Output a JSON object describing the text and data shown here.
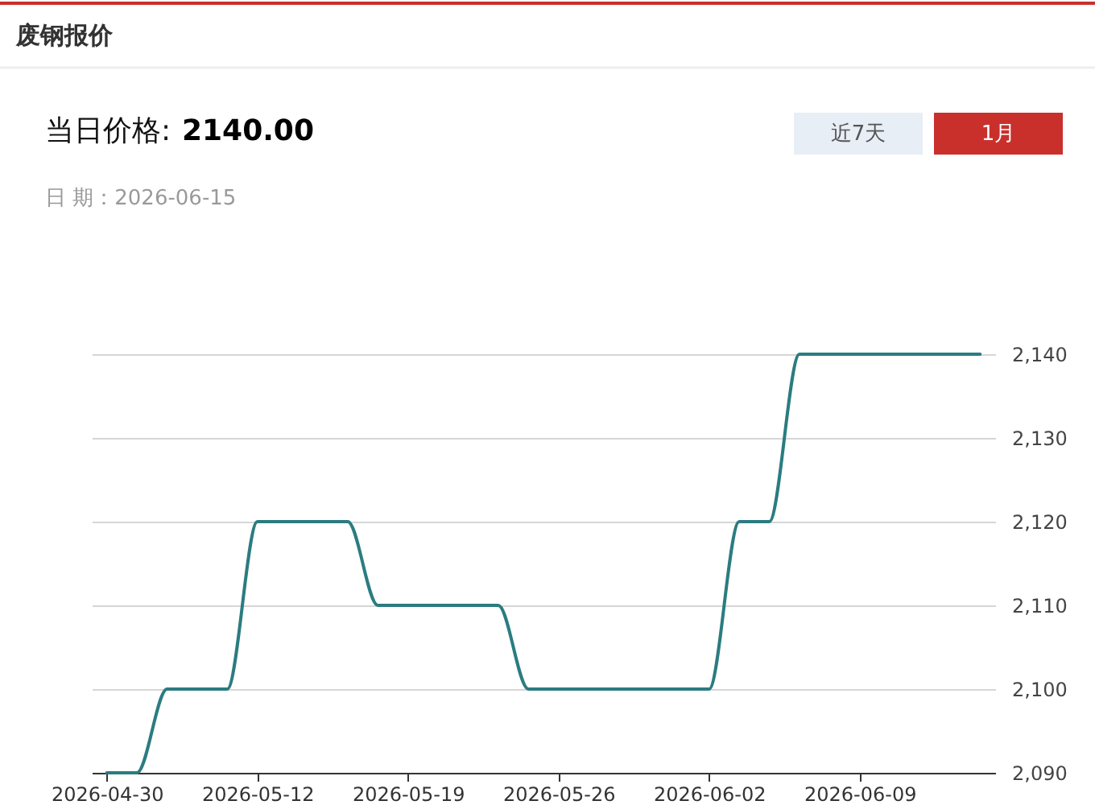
{
  "chart_data": {
    "type": "line",
    "title": "废钢报价",
    "annotations": [
      "当日价格:",
      "2140.00",
      "日 期：2026-06-15",
      "近7天",
      "1月"
    ],
    "categories": [
      "2026-04-30",
      null,
      null,
      null,
      null,
      "2026-05-12",
      null,
      null,
      null,
      null,
      "2026-05-19",
      null,
      null,
      null,
      null,
      "2026-05-26",
      null,
      null,
      null,
      null,
      "2026-06-02",
      null,
      null,
      null,
      null,
      "2026-06-09",
      null,
      null,
      null,
      null
    ],
    "series": [
      {
        "color": "#2b7c80",
        "values": [
          2090,
          2090,
          2100,
          2100,
          2100,
          2120,
          2120,
          2120,
          2120,
          2110,
          2110,
          2110,
          2110,
          2110,
          2100,
          2100,
          2100,
          2100,
          2100,
          2100,
          2100,
          2120,
          2120,
          2140,
          2140,
          2140,
          2140,
          2140,
          2140,
          2140
        ]
      }
    ],
    "ylim": [
      2090,
      2140
    ],
    "yticks": [
      {
        "value": 2090,
        "label": "2,090"
      },
      {
        "value": 2100,
        "label": "2,100"
      },
      {
        "value": 2110,
        "label": "2,110"
      },
      {
        "value": 2120,
        "label": "2,120"
      },
      {
        "value": 2130,
        "label": "2,130"
      },
      {
        "value": 2140,
        "label": "2,140"
      }
    ],
    "grid": "y",
    "line_style": "solid"
  }
}
